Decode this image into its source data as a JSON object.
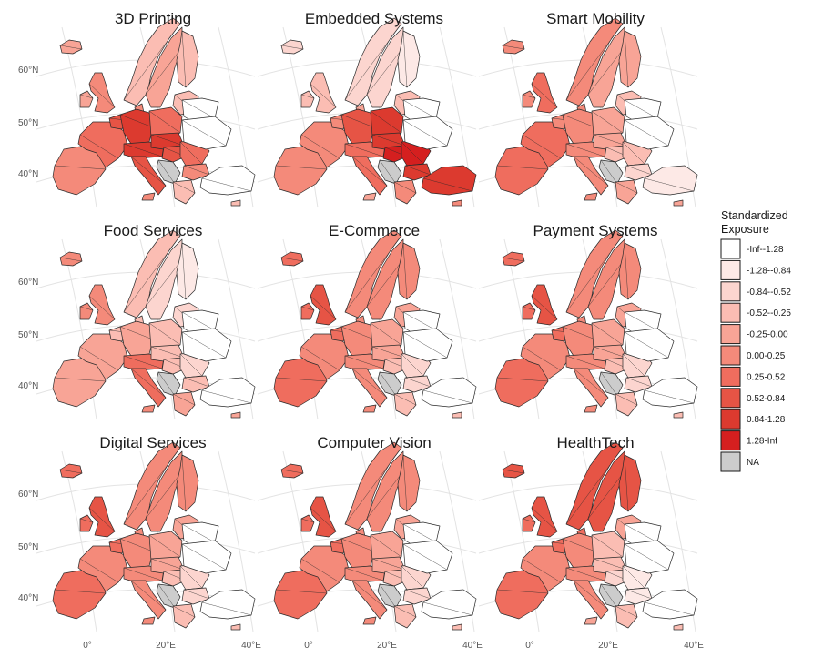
{
  "panels": [
    {
      "title": "3D Printing",
      "pattern": "central"
    },
    {
      "title": "Embedded Systems",
      "pattern": "eastcentral"
    },
    {
      "title": "Smart Mobility",
      "pattern": "west"
    },
    {
      "title": "Food Services",
      "pattern": "mixed"
    },
    {
      "title": "E-Commerce",
      "pattern": "westnorth"
    },
    {
      "title": "Payment Systems",
      "pattern": "westnorth"
    },
    {
      "title": "Digital Services",
      "pattern": "westnorth"
    },
    {
      "title": "Computer Vision",
      "pattern": "westnorth"
    },
    {
      "title": "HealthTech",
      "pattern": "north"
    }
  ],
  "y_ticks": [
    "60°N",
    "50°N",
    "40°N"
  ],
  "x_ticks": [
    "0°",
    "20°E",
    "40°E"
  ],
  "legend": {
    "title_line1": "Standardized",
    "title_line2": "Exposure",
    "items": [
      {
        "label": "-Inf--1.28",
        "color": "#ffffff"
      },
      {
        "label": "-1.28--0.84",
        "color": "#fde9e6"
      },
      {
        "label": "-0.84--0.52",
        "color": "#fcd5cf"
      },
      {
        "label": "-0.52--0.25",
        "color": "#fbbdb3"
      },
      {
        "label": "-0.25-0.00",
        "color": "#f8a496"
      },
      {
        "label": "0.00-0.25",
        "color": "#f48a7a"
      },
      {
        "label": "0.25-0.52",
        "color": "#ef6d5e"
      },
      {
        "label": "0.52-0.84",
        "color": "#e65445"
      },
      {
        "label": "0.84-1.28",
        "color": "#dc3a2f"
      },
      {
        "label": "1.28-Inf",
        "color": "#d51f1f"
      },
      {
        "label": "NA",
        "color": "#cccccc"
      }
    ]
  }
}
